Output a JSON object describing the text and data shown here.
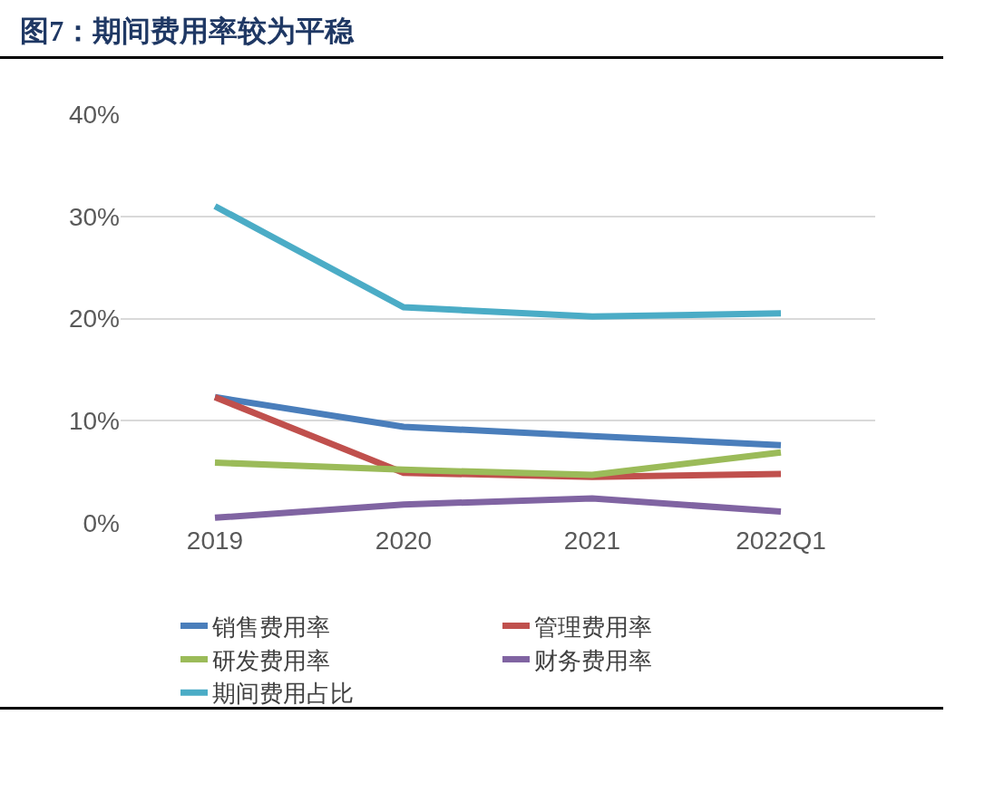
{
  "chart_data": {
    "type": "line",
    "title": "图7：期间费用率较为平稳",
    "categories": [
      "2019",
      "2020",
      "2021",
      "2022Q1"
    ],
    "series": [
      {
        "name": "销售费用率",
        "color": "#4a7ebb",
        "values": [
          12.3,
          9.4,
          8.5,
          7.6
        ]
      },
      {
        "name": "管理费用率",
        "color": "#c0504d",
        "values": [
          12.3,
          4.9,
          4.5,
          4.8
        ]
      },
      {
        "name": "研发费用率",
        "color": "#9bbb59",
        "values": [
          5.9,
          5.2,
          4.7,
          6.9
        ]
      },
      {
        "name": "财务费用率",
        "color": "#8064a2",
        "values": [
          0.5,
          1.8,
          2.4,
          1.1
        ]
      },
      {
        "name": "期间费用占比",
        "color": "#4bacc6",
        "values": [
          31.0,
          21.1,
          20.2,
          20.5
        ]
      }
    ],
    "ylim": [
      0,
      40
    ],
    "yticks": [
      {
        "value": 0,
        "label": "0%"
      },
      {
        "value": 10,
        "label": "10%"
      },
      {
        "value": 20,
        "label": "20%"
      },
      {
        "value": 30,
        "label": "30%"
      },
      {
        "value": 40,
        "label": "40%"
      }
    ],
    "grid": "y",
    "legend": "bottom",
    "marker": "none",
    "line_style": "solid"
  }
}
